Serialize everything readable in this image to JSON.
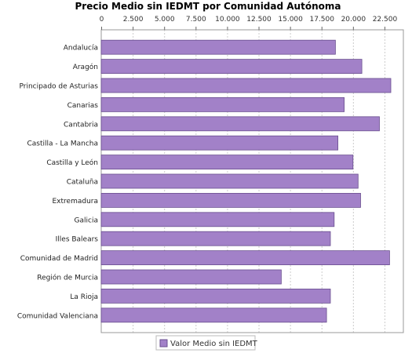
{
  "chart_data": {
    "type": "bar",
    "orientation": "horizontal",
    "title": "Precio Medio sin IEDMT por Comunidad Autónoma",
    "xlabel": "",
    "ylabel": "",
    "xlim": [
      0,
      24000
    ],
    "x_ticks": [
      0,
      2500,
      5000,
      7500,
      10000,
      12500,
      15000,
      17500,
      20000,
      22500
    ],
    "x_tick_labels": [
      "0",
      "2.500",
      "5.000",
      "7.500",
      "10.000",
      "12.500",
      "15.000",
      "17.500",
      "20.000",
      "22.500"
    ],
    "x_axis_position": "top",
    "grid": "vertical dashed",
    "legend_position": "bottom",
    "categories": [
      "Andalucía",
      "Aragón",
      "Principado de Asturias",
      "Canarias",
      "Cantabria",
      "Castilla - La Mancha",
      "Castilla y León",
      "Cataluña",
      "Extremadura",
      "Galicia",
      "Illes Balears",
      "Comunidad de Madrid",
      "Región de Murcia",
      "La Rioja",
      "Comunidad Valenciana"
    ],
    "series": [
      {
        "name": "Valor Medio sin IEDMT",
        "color": "#a281c8",
        "values": [
          18600,
          20700,
          23000,
          19300,
          22100,
          18800,
          20000,
          20400,
          20600,
          18500,
          18200,
          22900,
          14300,
          18200,
          17900
        ]
      }
    ]
  }
}
